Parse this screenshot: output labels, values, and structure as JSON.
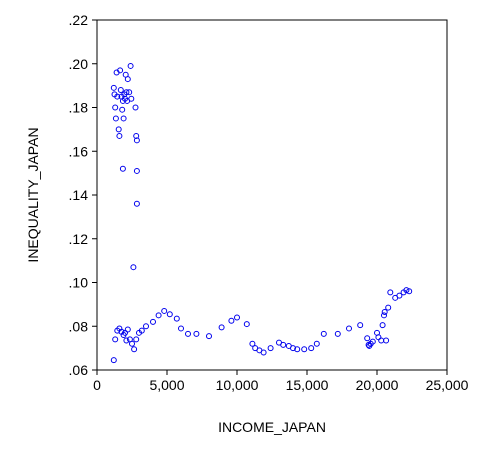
{
  "chart_data": {
    "type": "scatter",
    "xlabel": "INCOME_JAPAN",
    "ylabel": "INEQUALITY_JAPAN",
    "xlim": [
      0,
      25000
    ],
    "ylim": [
      0.06,
      0.22
    ],
    "xticks": [
      0,
      5000,
      10000,
      15000,
      20000,
      25000
    ],
    "xtick_labels": [
      "0",
      "5,000",
      "10,000",
      "15,000",
      "20,000",
      "25,000"
    ],
    "yticks": [
      0.06,
      0.08,
      0.1,
      0.12,
      0.14,
      0.16,
      0.18,
      0.2,
      0.22
    ],
    "ytick_labels": [
      ".06",
      ".08",
      ".10",
      ".12",
      ".14",
      ".16",
      ".18",
      ".20",
      ".22"
    ],
    "grid": false,
    "marker": "hollow-circle",
    "marker_color": "#0000ee",
    "series": [
      {
        "points": [
          [
            1200,
            0.0645
          ],
          [
            1300,
            0.074
          ],
          [
            1450,
            0.078
          ],
          [
            1600,
            0.079
          ],
          [
            1750,
            0.0775
          ],
          [
            1900,
            0.076
          ],
          [
            2000,
            0.077
          ],
          [
            2100,
            0.0735
          ],
          [
            2200,
            0.0785
          ],
          [
            2350,
            0.074
          ],
          [
            2500,
            0.072
          ],
          [
            2650,
            0.0695
          ],
          [
            2800,
            0.074
          ],
          [
            3000,
            0.077
          ],
          [
            3200,
            0.078
          ],
          [
            3500,
            0.08
          ],
          [
            4000,
            0.082
          ],
          [
            4400,
            0.085
          ],
          [
            4800,
            0.087
          ],
          [
            5200,
            0.0855
          ],
          [
            5700,
            0.0835
          ],
          [
            6000,
            0.079
          ],
          [
            6500,
            0.0765
          ],
          [
            7100,
            0.0765
          ],
          [
            8000,
            0.0755
          ],
          [
            8900,
            0.0795
          ],
          [
            9600,
            0.0825
          ],
          [
            10000,
            0.084
          ],
          [
            10700,
            0.081
          ],
          [
            11100,
            0.072
          ],
          [
            11300,
            0.07
          ],
          [
            11600,
            0.069
          ],
          [
            11900,
            0.068
          ],
          [
            12400,
            0.07
          ],
          [
            13000,
            0.0725
          ],
          [
            13300,
            0.0715
          ],
          [
            13700,
            0.071
          ],
          [
            14000,
            0.07
          ],
          [
            14300,
            0.0695
          ],
          [
            14800,
            0.0695
          ],
          [
            15300,
            0.07
          ],
          [
            15700,
            0.072
          ],
          [
            16200,
            0.0765
          ],
          [
            17200,
            0.0765
          ],
          [
            18000,
            0.079
          ],
          [
            18800,
            0.0805
          ],
          [
            19300,
            0.0745
          ],
          [
            19400,
            0.0715
          ],
          [
            19450,
            0.071
          ],
          [
            19550,
            0.072
          ],
          [
            19700,
            0.073
          ],
          [
            20000,
            0.077
          ],
          [
            20100,
            0.075
          ],
          [
            20300,
            0.0735
          ],
          [
            20400,
            0.0805
          ],
          [
            20500,
            0.085
          ],
          [
            20550,
            0.0865
          ],
          [
            20650,
            0.0735
          ],
          [
            20800,
            0.0885
          ],
          [
            20950,
            0.0955
          ],
          [
            21300,
            0.093
          ],
          [
            21600,
            0.094
          ],
          [
            21900,
            0.0955
          ],
          [
            22100,
            0.0965
          ],
          [
            22300,
            0.096
          ],
          [
            1200,
            0.189
          ],
          [
            1250,
            0.186
          ],
          [
            1300,
            0.18
          ],
          [
            1350,
            0.175
          ],
          [
            1400,
            0.196
          ],
          [
            1450,
            0.185
          ],
          [
            1550,
            0.17
          ],
          [
            1600,
            0.167
          ],
          [
            1650,
            0.197
          ],
          [
            1700,
            0.188
          ],
          [
            1750,
            0.185
          ],
          [
            1800,
            0.179
          ],
          [
            1850,
            0.183
          ],
          [
            1850,
            0.152
          ],
          [
            1900,
            0.175
          ],
          [
            1950,
            0.186
          ],
          [
            2000,
            0.184
          ],
          [
            2050,
            0.195
          ],
          [
            2100,
            0.187
          ],
          [
            2150,
            0.183
          ],
          [
            2200,
            0.193
          ],
          [
            2300,
            0.187
          ],
          [
            2400,
            0.199
          ],
          [
            2450,
            0.184
          ],
          [
            2600,
            0.107
          ],
          [
            2750,
            0.18
          ],
          [
            2800,
            0.167
          ],
          [
            2850,
            0.165
          ],
          [
            2850,
            0.151
          ],
          [
            2850,
            0.136
          ]
        ]
      }
    ]
  }
}
